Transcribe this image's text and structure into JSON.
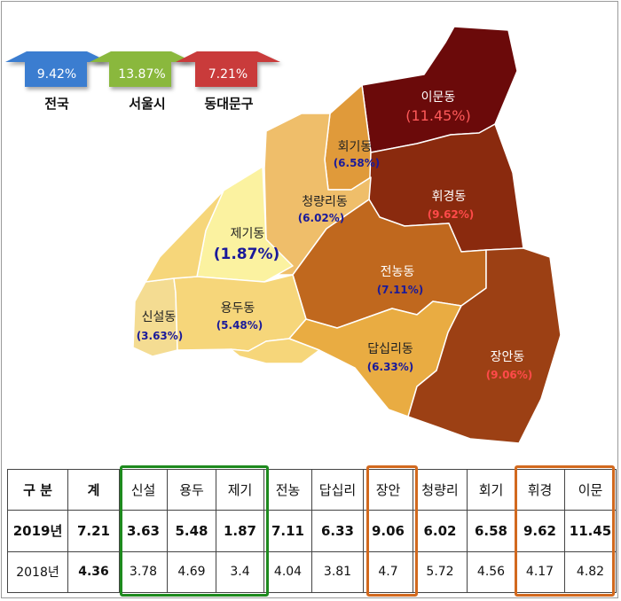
{
  "summary": [
    {
      "value": "9.42%",
      "name": "전국",
      "color": "#3a7dd0"
    },
    {
      "value": "13.87%",
      "name": "서울시",
      "color": "#8ab83c"
    },
    {
      "value": "7.21%",
      "name": "동대문구",
      "color": "#c93a3a"
    }
  ],
  "districts": [
    {
      "name": "이문동",
      "pct": "(11.45%)",
      "fill": "#6b0a0a"
    },
    {
      "name": "회기동",
      "pct": "(6.58%)",
      "fill": "#e09a3a"
    },
    {
      "name": "휘경동",
      "pct": "(9.62%)",
      "fill": "#8a2a0e"
    },
    {
      "name": "청량리동",
      "pct": "(6.02%)",
      "fill": "#efbe6a"
    },
    {
      "name": "제기동",
      "pct": "(1.87%)",
      "fill": "#fbf2a0"
    },
    {
      "name": "전농동",
      "pct": "(7.11%)",
      "fill": "#c0681e"
    },
    {
      "name": "신설동",
      "pct": "(3.63%)",
      "fill": "#f4dc92"
    },
    {
      "name": "용두동",
      "pct": "(5.48%)",
      "fill": "#f6d67a"
    },
    {
      "name": "답십리동",
      "pct": "(6.33%)",
      "fill": "#e9ac42"
    },
    {
      "name": "장안동",
      "pct": "(9.06%)",
      "fill": "#9c4014"
    }
  ],
  "table": {
    "header": [
      "구  분",
      "계",
      "신설",
      "용두",
      "제기",
      "전농",
      "답십리",
      "장안",
      "청량리",
      "회기",
      "휘경",
      "이문"
    ],
    "rows": [
      {
        "year": "2019년",
        "values": [
          "7.21",
          "3.63",
          "5.48",
          "1.87",
          "7.11",
          "6.33",
          "9.06",
          "6.02",
          "6.58",
          "9.62",
          "11.45"
        ]
      },
      {
        "year": "2018년",
        "values": [
          "4.36",
          "3.78",
          "4.69",
          "3.4",
          "4.04",
          "3.81",
          "4.7",
          "5.72",
          "4.56",
          "4.17",
          "4.82"
        ]
      }
    ],
    "highlight_colors": {
      "green": "#1e8a1e",
      "orange": "#d2691e"
    }
  }
}
